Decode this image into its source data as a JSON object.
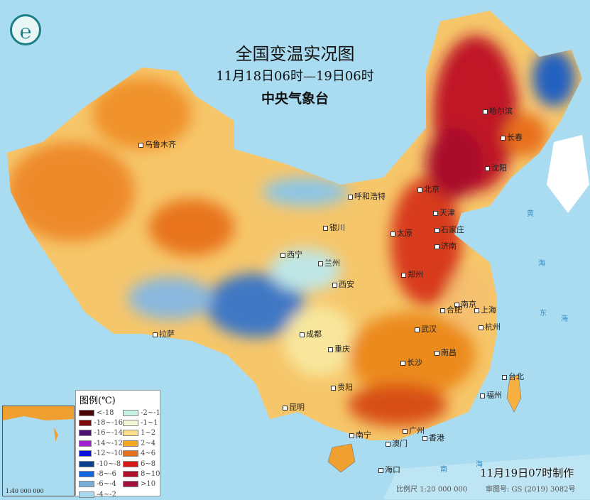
{
  "title": "全国变温实况图",
  "subtitle": "11月18日06时—19日06时",
  "agency": "中央气象台",
  "logo_icon": "cma-logo-icon",
  "legend": {
    "title": "图例(℃)",
    "items": [
      {
        "label": "<-18",
        "color": "#4a0606"
      },
      {
        "label": "-18~-16",
        "color": "#7a0a0a"
      },
      {
        "label": "-16~-14",
        "color": "#4b1070"
      },
      {
        "label": "-14~-12",
        "color": "#a020d0"
      },
      {
        "label": "-12~-10",
        "color": "#0a10d8"
      },
      {
        "label": "-10~-8",
        "color": "#0d3e8e"
      },
      {
        "label": "-8~-6",
        "color": "#1565e0"
      },
      {
        "label": "-6~-4",
        "color": "#7aaed4"
      },
      {
        "label": "-4~-2",
        "color": "#a8d8ee"
      },
      {
        "label": "-2~-1",
        "color": "#c8f2e4"
      },
      {
        "label": "-1~1",
        "color": "#f4f8d6"
      },
      {
        "label": "1~2",
        "color": "#fde08a"
      },
      {
        "label": "2~4",
        "color": "#f5a623"
      },
      {
        "label": "4~6",
        "color": "#e8701a"
      },
      {
        "label": "6~8",
        "color": "#d81818"
      },
      {
        "label": "8~10",
        "color": "#b0102a"
      },
      {
        "label": ">10",
        "color": "#a0103a"
      }
    ]
  },
  "cities": [
    {
      "name": "乌鲁木齐"
    },
    {
      "name": "呼和浩特"
    },
    {
      "name": "北京"
    },
    {
      "name": "天津"
    },
    {
      "name": "石家庄"
    },
    {
      "name": "太原"
    },
    {
      "name": "银川"
    },
    {
      "name": "西宁"
    },
    {
      "name": "兰州"
    },
    {
      "name": "济南"
    },
    {
      "name": "郑州"
    },
    {
      "name": "西安"
    },
    {
      "name": "南京"
    },
    {
      "name": "合肥"
    },
    {
      "name": "上海"
    },
    {
      "name": "杭州"
    },
    {
      "name": "武汉"
    },
    {
      "name": "成都"
    },
    {
      "name": "拉萨"
    },
    {
      "name": "重庆"
    },
    {
      "name": "南昌"
    },
    {
      "name": "长沙"
    },
    {
      "name": "福州"
    },
    {
      "name": "台北"
    },
    {
      "name": "贵阳"
    },
    {
      "name": "昆明"
    },
    {
      "name": "广州"
    },
    {
      "name": "南宁"
    },
    {
      "name": "香港"
    },
    {
      "name": "澳门"
    },
    {
      "name": "海口"
    },
    {
      "name": "哈尔滨"
    },
    {
      "name": "长春"
    },
    {
      "name": "沈阳"
    }
  ],
  "seas": [
    "黄",
    "海",
    "东",
    "海",
    "南",
    "海"
  ],
  "inset": {
    "scale": "1:40 000 000"
  },
  "footer": {
    "made": "11月19日07时制作",
    "scale": "比例尺 1:20 000 000",
    "map_no": "审图号: GS (2019) 3082号"
  }
}
